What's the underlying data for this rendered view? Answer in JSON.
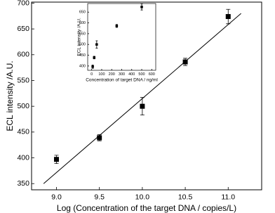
{
  "chart_data": [
    {
      "type": "scatter",
      "x_label": "Log (Concentration of the target DNA / copies/L)",
      "y_label": "ECL intensity /A.U.",
      "x": [
        9.0,
        9.5,
        10.0,
        10.5,
        11.0
      ],
      "values": [
        397,
        439,
        500,
        586,
        674
      ],
      "errors": [
        8,
        6,
        17,
        7,
        14
      ],
      "color": "#000000",
      "fit": {
        "x": [
          8.85,
          11.15
        ],
        "values": [
          350,
          680
        ]
      },
      "xlim": [
        8.71,
        11.39
      ],
      "ylim": [
        338,
        702
      ],
      "xticks": [
        {
          "value": 9.0,
          "label": "9.0"
        },
        9.5,
        {
          "value": 10.0,
          "label": "10.0"
        },
        10.5,
        {
          "value": 11.0,
          "label": "11.0"
        }
      ],
      "yticks": [
        350,
        400,
        450,
        500,
        550,
        600,
        650,
        700
      ]
    },
    {
      "type": "scatter",
      "x_label": "Concentration of target DNA / ng/ml",
      "y_label": "ECL intensity /A.U.",
      "x": [
        10,
        25,
        50,
        250,
        500
      ],
      "values": [
        397,
        439,
        500,
        586,
        674
      ],
      "errors": [
        8,
        6,
        17,
        7,
        14
      ],
      "color": "#000000",
      "xlim": [
        -40,
        640
      ],
      "ylim": [
        380,
        690
      ],
      "xticks": [
        0,
        100,
        200,
        300,
        400,
        500,
        600
      ],
      "yticks": [
        400,
        450,
        500,
        550,
        600,
        650
      ]
    }
  ]
}
